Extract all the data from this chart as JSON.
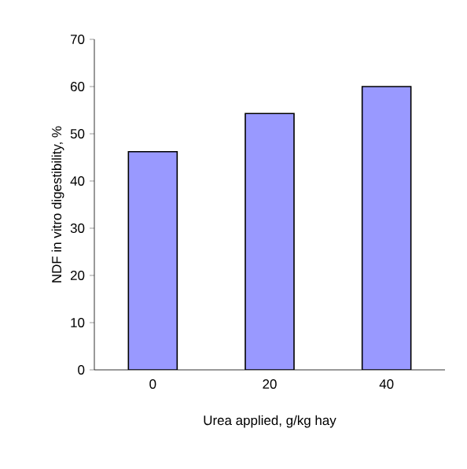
{
  "chart_data": {
    "type": "bar",
    "xlabel": "Urea applied, g/kg hay",
    "ylabel": "NDF in vitro digestibility, %",
    "categories": [
      "0",
      "20",
      "40"
    ],
    "values": [
      46.2,
      54.3,
      60
    ],
    "color": "#9999ff",
    "ylim": [
      0,
      70
    ],
    "yticks": [
      0,
      10,
      20,
      30,
      40,
      50,
      60,
      70
    ]
  }
}
